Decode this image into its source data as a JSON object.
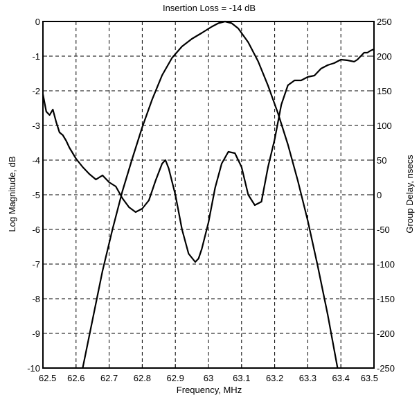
{
  "chart_data": {
    "type": "line",
    "title": "Insertion Loss = -14 dB",
    "xlabel": "Frequency, MHz",
    "ylabel": "Log Magnitude, dB",
    "y2label": "Group Delay, nsecs",
    "xlim": [
      62.5,
      63.5
    ],
    "ylim": [
      -10,
      0
    ],
    "y2lim": [
      -250,
      250
    ],
    "grid": true,
    "x_ticks": [
      "62.5",
      "62.6",
      "62.7",
      "62.8",
      "62.9",
      "63",
      "63.1",
      "63.2",
      "63.3",
      "63.4",
      "63.5"
    ],
    "y_ticks": [
      "0",
      "-1",
      "-2",
      "-3",
      "-4",
      "-5",
      "-6",
      "-7",
      "-8",
      "-9",
      "-10"
    ],
    "y2_ticks": [
      "250",
      "200",
      "150",
      "100",
      "50",
      "0",
      "-50",
      "-100",
      "-150",
      "-200",
      "-250"
    ],
    "series": [
      {
        "axis": "left",
        "color": "#000000",
        "points": [
          [
            62.62,
            -10.0
          ],
          [
            62.65,
            -8.6
          ],
          [
            62.68,
            -7.2
          ],
          [
            62.71,
            -6.0
          ],
          [
            62.74,
            -4.9
          ],
          [
            62.77,
            -3.95
          ],
          [
            62.8,
            -3.05
          ],
          [
            62.83,
            -2.25
          ],
          [
            62.86,
            -1.55
          ],
          [
            62.89,
            -1.05
          ],
          [
            62.92,
            -0.72
          ],
          [
            62.95,
            -0.5
          ],
          [
            62.98,
            -0.33
          ],
          [
            63.01,
            -0.15
          ],
          [
            63.03,
            -0.05
          ],
          [
            63.05,
            0.0
          ],
          [
            63.07,
            -0.05
          ],
          [
            63.09,
            -0.2
          ],
          [
            63.12,
            -0.6
          ],
          [
            63.15,
            -1.15
          ],
          [
            63.18,
            -1.85
          ],
          [
            63.21,
            -2.65
          ],
          [
            63.24,
            -3.55
          ],
          [
            63.27,
            -4.6
          ],
          [
            63.3,
            -5.75
          ],
          [
            63.33,
            -7.05
          ],
          [
            63.36,
            -8.45
          ],
          [
            63.39,
            -10.0
          ]
        ]
      },
      {
        "axis": "right",
        "color": "#000000",
        "points": [
          [
            62.5,
            145
          ],
          [
            62.51,
            120
          ],
          [
            62.52,
            115
          ],
          [
            62.53,
            123
          ],
          [
            62.54,
            105
          ],
          [
            62.55,
            90
          ],
          [
            62.56,
            86
          ],
          [
            62.57,
            78
          ],
          [
            62.58,
            68
          ],
          [
            62.6,
            52
          ],
          [
            62.62,
            40
          ],
          [
            62.64,
            30
          ],
          [
            62.66,
            22
          ],
          [
            62.68,
            28
          ],
          [
            62.7,
            18
          ],
          [
            62.72,
            12
          ],
          [
            62.74,
            -5
          ],
          [
            62.76,
            -18
          ],
          [
            62.78,
            -25
          ],
          [
            62.8,
            -20
          ],
          [
            62.82,
            -8
          ],
          [
            62.84,
            20
          ],
          [
            62.86,
            45
          ],
          [
            62.87,
            50
          ],
          [
            62.88,
            38
          ],
          [
            62.9,
            0
          ],
          [
            62.92,
            -50
          ],
          [
            62.94,
            -85
          ],
          [
            62.96,
            -97
          ],
          [
            62.97,
            -92
          ],
          [
            62.98,
            -78
          ],
          [
            63.0,
            -40
          ],
          [
            63.02,
            10
          ],
          [
            63.04,
            45
          ],
          [
            63.06,
            62
          ],
          [
            63.08,
            60
          ],
          [
            63.1,
            40
          ],
          [
            63.12,
            0
          ],
          [
            63.14,
            -15
          ],
          [
            63.16,
            -10
          ],
          [
            63.18,
            40
          ],
          [
            63.2,
            80
          ],
          [
            63.22,
            130
          ],
          [
            63.24,
            158
          ],
          [
            63.26,
            165
          ],
          [
            63.28,
            165
          ],
          [
            63.3,
            170
          ],
          [
            63.32,
            172
          ],
          [
            63.34,
            182
          ],
          [
            63.36,
            187
          ],
          [
            63.38,
            190
          ],
          [
            63.4,
            195
          ],
          [
            63.42,
            194
          ],
          [
            63.44,
            192
          ],
          [
            63.45,
            195
          ],
          [
            63.47,
            205
          ],
          [
            63.48,
            205
          ],
          [
            63.49,
            208
          ],
          [
            63.5,
            210
          ]
        ]
      }
    ]
  }
}
